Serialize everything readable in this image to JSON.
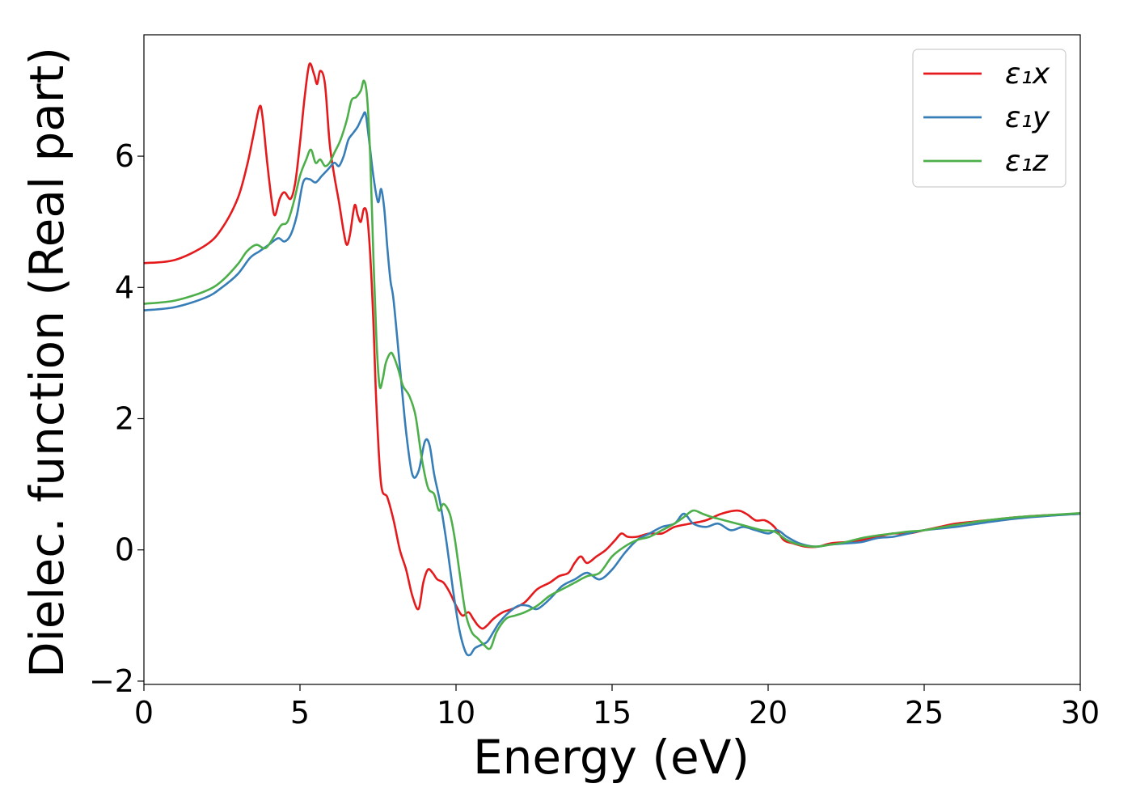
{
  "chart_data": {
    "type": "line",
    "title": "",
    "xlabel": "Energy (eV)",
    "ylabel": "Dielec. function (Real part)",
    "xlim": [
      0,
      30
    ],
    "ylim": [
      -2.05,
      7.85
    ],
    "xticks": [
      0,
      5,
      10,
      15,
      20,
      25,
      30
    ],
    "yticks": [
      -2,
      0,
      2,
      4,
      6
    ],
    "xtick_labels": [
      "0",
      "5",
      "10",
      "15",
      "20",
      "25",
      "30"
    ],
    "ytick_labels": [
      "−2",
      "0",
      "2",
      "4",
      "6"
    ],
    "grid": false,
    "legend_position": "top-right",
    "series": [
      {
        "name": "ε₁x",
        "color": "#e41a1c",
        "x": [
          0,
          1.0,
          2.0,
          2.5,
          3.0,
          3.3,
          3.5,
          3.7,
          3.8,
          3.95,
          4.1,
          4.2,
          4.35,
          4.5,
          4.7,
          4.85,
          5.0,
          5.15,
          5.3,
          5.45,
          5.55,
          5.65,
          5.8,
          5.95,
          6.1,
          6.25,
          6.4,
          6.5,
          6.6,
          6.75,
          6.85,
          6.95,
          7.05,
          7.15,
          7.25,
          7.35,
          7.45,
          7.6,
          7.8,
          8.0,
          8.2,
          8.4,
          8.6,
          8.8,
          8.95,
          9.1,
          9.25,
          9.4,
          9.6,
          9.8,
          10.0,
          10.2,
          10.4,
          10.55,
          10.7,
          10.85,
          11.0,
          11.2,
          11.5,
          11.8,
          12.2,
          12.6,
          13.0,
          13.3,
          13.6,
          13.8,
          14.0,
          14.2,
          14.5,
          14.8,
          15.1,
          15.3,
          15.5,
          15.8,
          16.2,
          16.6,
          17.0,
          17.5,
          18.0,
          18.5,
          19.0,
          19.3,
          19.6,
          19.9,
          20.2,
          20.5,
          20.8,
          21.2,
          21.6,
          22.0,
          22.5,
          23.0,
          23.5,
          24.0,
          24.5,
          25.0,
          25.5,
          26.0,
          27.0,
          28.0,
          29.0,
          30.0
        ],
        "values": [
          4.37,
          4.42,
          4.65,
          4.9,
          5.35,
          5.85,
          6.3,
          6.75,
          6.6,
          5.9,
          5.3,
          5.1,
          5.35,
          5.45,
          5.35,
          5.6,
          6.2,
          6.9,
          7.4,
          7.25,
          7.1,
          7.3,
          7.1,
          6.2,
          5.7,
          5.3,
          4.85,
          4.65,
          4.8,
          5.25,
          5.1,
          5.0,
          5.2,
          5.1,
          4.5,
          3.5,
          2.2,
          1.0,
          0.8,
          0.45,
          0.0,
          -0.3,
          -0.7,
          -0.9,
          -0.5,
          -0.3,
          -0.35,
          -0.45,
          -0.5,
          -0.65,
          -0.85,
          -1.0,
          -0.95,
          -1.05,
          -1.15,
          -1.2,
          -1.15,
          -1.05,
          -0.95,
          -0.9,
          -0.8,
          -0.6,
          -0.5,
          -0.4,
          -0.35,
          -0.2,
          -0.1,
          -0.2,
          -0.1,
          0.0,
          0.15,
          0.25,
          0.2,
          0.2,
          0.25,
          0.25,
          0.35,
          0.4,
          0.45,
          0.55,
          0.6,
          0.55,
          0.45,
          0.45,
          0.35,
          0.15,
          0.1,
          0.05,
          0.05,
          0.1,
          0.12,
          0.15,
          0.2,
          0.25,
          0.25,
          0.3,
          0.35,
          0.4,
          0.45,
          0.5,
          0.53,
          0.55
        ]
      },
      {
        "name": "ε₁y",
        "color": "#377eb8",
        "x": [
          0,
          1.0,
          2.0,
          2.5,
          3.0,
          3.4,
          3.7,
          4.0,
          4.3,
          4.5,
          4.7,
          4.9,
          5.1,
          5.3,
          5.5,
          5.7,
          5.9,
          6.1,
          6.25,
          6.4,
          6.55,
          6.7,
          6.85,
          7.0,
          7.1,
          7.2,
          7.35,
          7.5,
          7.6,
          7.7,
          7.8,
          7.9,
          8.0,
          8.2,
          8.4,
          8.6,
          8.8,
          9.0,
          9.15,
          9.3,
          9.5,
          9.7,
          9.9,
          10.1,
          10.3,
          10.45,
          10.6,
          10.8,
          11.0,
          11.2,
          11.4,
          11.7,
          12.0,
          12.3,
          12.6,
          13.0,
          13.4,
          13.8,
          14.2,
          14.6,
          15.0,
          15.4,
          15.8,
          16.2,
          16.6,
          17.0,
          17.3,
          17.6,
          18.0,
          18.4,
          18.8,
          19.2,
          19.6,
          20.0,
          20.3,
          20.6,
          21.0,
          21.5,
          22.0,
          22.5,
          23.0,
          23.5,
          24.0,
          24.5,
          25.0,
          26.0,
          27.0,
          28.0,
          29.0,
          30.0
        ],
        "values": [
          3.65,
          3.7,
          3.85,
          4.0,
          4.2,
          4.45,
          4.55,
          4.65,
          4.75,
          4.7,
          4.8,
          5.1,
          5.6,
          5.65,
          5.6,
          5.7,
          5.8,
          5.9,
          5.85,
          6.0,
          6.25,
          6.35,
          6.45,
          6.6,
          6.65,
          6.3,
          5.7,
          5.3,
          5.5,
          5.2,
          4.6,
          4.1,
          3.8,
          2.8,
          1.8,
          1.15,
          1.2,
          1.65,
          1.6,
          1.15,
          0.7,
          0.1,
          -0.6,
          -1.2,
          -1.55,
          -1.6,
          -1.5,
          -1.45,
          -1.4,
          -1.25,
          -1.1,
          -0.95,
          -0.85,
          -0.85,
          -0.9,
          -0.75,
          -0.55,
          -0.45,
          -0.35,
          -0.45,
          -0.3,
          -0.05,
          0.15,
          0.25,
          0.35,
          0.4,
          0.55,
          0.4,
          0.35,
          0.4,
          0.3,
          0.35,
          0.3,
          0.25,
          0.3,
          0.2,
          0.1,
          0.05,
          0.08,
          0.1,
          0.12,
          0.18,
          0.2,
          0.25,
          0.3,
          0.35,
          0.42,
          0.48,
          0.52,
          0.55
        ]
      },
      {
        "name": "ε₁z",
        "color": "#4daf4a",
        "x": [
          0,
          1.0,
          2.0,
          2.5,
          3.0,
          3.3,
          3.6,
          3.9,
          4.2,
          4.4,
          4.6,
          4.8,
          5.0,
          5.2,
          5.35,
          5.5,
          5.65,
          5.8,
          5.95,
          6.1,
          6.3,
          6.5,
          6.65,
          6.8,
          6.95,
          7.05,
          7.15,
          7.25,
          7.35,
          7.45,
          7.55,
          7.65,
          7.75,
          7.9,
          8.0,
          8.15,
          8.3,
          8.5,
          8.7,
          8.9,
          9.1,
          9.3,
          9.45,
          9.6,
          9.8,
          9.95,
          10.1,
          10.3,
          10.5,
          10.7,
          10.9,
          11.1,
          11.3,
          11.6,
          11.9,
          12.2,
          12.6,
          13.0,
          13.4,
          13.8,
          14.2,
          14.6,
          15.0,
          15.4,
          15.8,
          16.2,
          16.6,
          17.0,
          17.3,
          17.6,
          17.9,
          18.2,
          18.6,
          19.0,
          19.4,
          19.8,
          20.2,
          20.6,
          21.0,
          21.5,
          22.0,
          22.5,
          23.0,
          23.5,
          24.0,
          24.5,
          25.0,
          26.0,
          27.0,
          28.0,
          29.0,
          30.0
        ],
        "values": [
          3.75,
          3.8,
          3.95,
          4.1,
          4.35,
          4.55,
          4.65,
          4.6,
          4.8,
          4.95,
          5.0,
          5.3,
          5.7,
          5.95,
          6.1,
          5.9,
          5.95,
          5.85,
          5.9,
          6.05,
          6.25,
          6.55,
          6.85,
          6.9,
          7.0,
          7.15,
          6.9,
          6.0,
          4.5,
          3.2,
          2.5,
          2.6,
          2.85,
          3.0,
          2.95,
          2.75,
          2.5,
          2.35,
          2.05,
          1.4,
          0.95,
          0.85,
          0.6,
          0.7,
          0.55,
          0.2,
          -0.3,
          -0.95,
          -1.25,
          -1.35,
          -1.45,
          -1.5,
          -1.25,
          -1.05,
          -1.0,
          -0.95,
          -0.85,
          -0.7,
          -0.6,
          -0.5,
          -0.4,
          -0.35,
          -0.1,
          0.05,
          0.15,
          0.2,
          0.3,
          0.4,
          0.5,
          0.6,
          0.55,
          0.5,
          0.45,
          0.4,
          0.35,
          0.3,
          0.28,
          0.15,
          0.08,
          0.05,
          0.08,
          0.12,
          0.18,
          0.22,
          0.25,
          0.28,
          0.3,
          0.38,
          0.45,
          0.5,
          0.53,
          0.56
        ]
      }
    ]
  }
}
